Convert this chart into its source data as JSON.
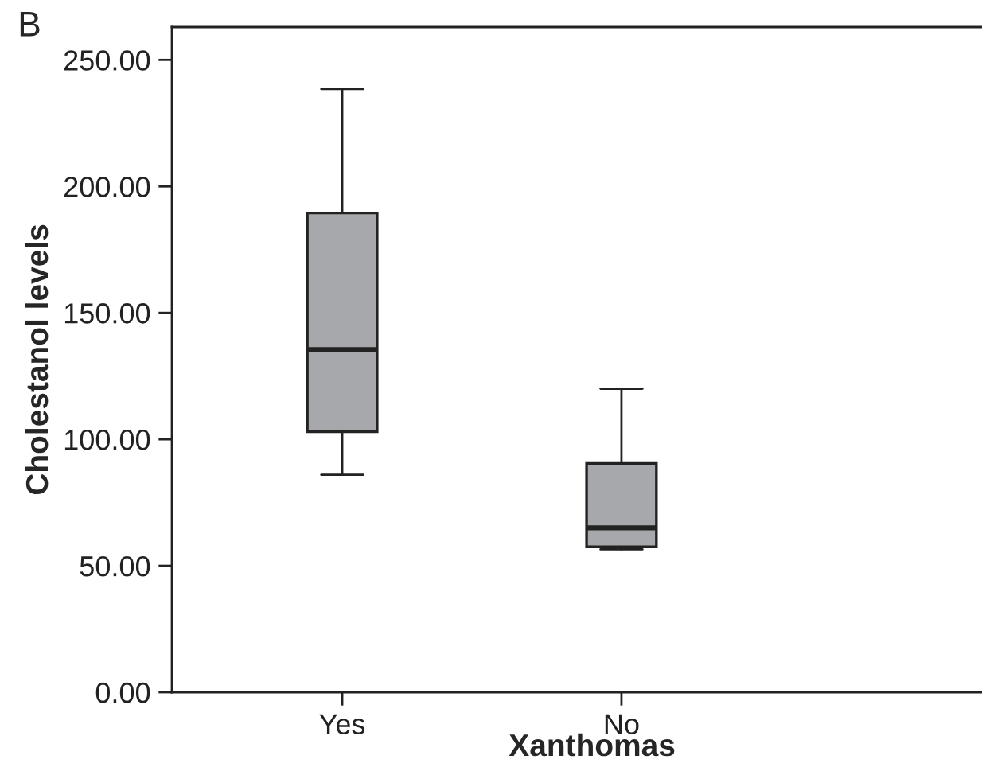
{
  "chart_data": {
    "type": "box",
    "xlabel": "Xanthomas",
    "ylabel": "Cholestanol levels",
    "annotations": [
      "B"
    ],
    "categories": [
      "Yes",
      "No"
    ],
    "boxes": [
      {
        "low": 86,
        "q1": 103,
        "median": 135.5,
        "q3": 189.5,
        "high": 238.5
      },
      {
        "low": 56.5,
        "q1": 57.5,
        "median": 65,
        "q3": 90.5,
        "high": 120
      }
    ],
    "color": "#a7a8ab",
    "ylim": [
      0,
      263
    ],
    "yticks": [
      {
        "value": 0,
        "label": "0.00"
      },
      {
        "value": 50,
        "label": "50.00"
      },
      {
        "value": 100,
        "label": "100.00"
      },
      {
        "value": 150,
        "label": "150.00"
      },
      {
        "value": 200,
        "label": "200.00"
      },
      {
        "value": 250,
        "label": "250.00"
      }
    ],
    "grid": false
  }
}
